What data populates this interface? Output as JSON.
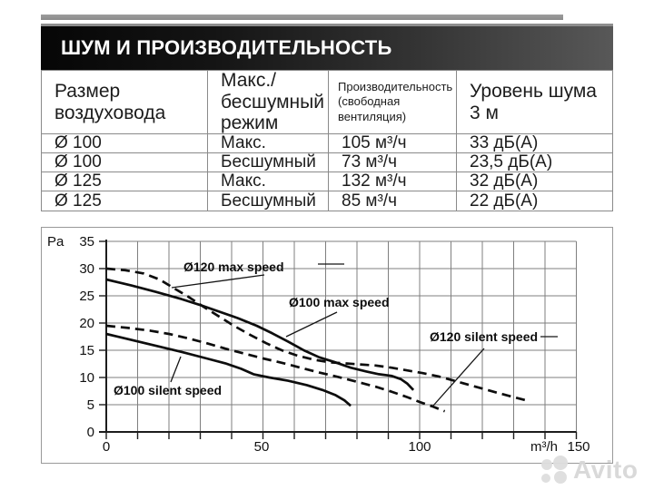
{
  "page": {
    "title_bar": {
      "text": "ШУМ И ПРОИЗВОДИТЕЛЬНОСТЬ"
    },
    "watermark": {
      "text": "Avito"
    }
  },
  "table": {
    "headers": [
      "Размер воздуховода",
      "Макс./ бесшумный режим",
      "Производительность (свободная вентиляция)",
      "Уровень шума 3 м"
    ],
    "rows": [
      [
        "Ø 100",
        "Макс.",
        "105 м³/ч",
        "33 дБ(А)"
      ],
      [
        "Ø 100",
        "Бесшумный",
        "73 м³/ч",
        "23,5 дБ(А)"
      ],
      [
        "Ø 125",
        "Макс.",
        "132 м³/ч",
        "32 дБ(А)"
      ],
      [
        "Ø 125",
        "Бесшумный",
        "85 м³/ч",
        "22 дБ(А)"
      ]
    ]
  },
  "chart_data": {
    "type": "line",
    "title": "",
    "xlabel": "m³/h",
    "ylabel": "Pa",
    "xlim": [
      0,
      150
    ],
    "ylim": [
      0,
      35
    ],
    "x_ticks": [
      0,
      50,
      100,
      150
    ],
    "y_ticks": [
      35,
      30,
      25,
      20,
      15,
      10,
      5,
      0
    ],
    "grid": {
      "on": true,
      "x_step": 10,
      "y_step": 5
    },
    "legend_position": "inline-callouts",
    "series": [
      {
        "name": "Ø120 max speed",
        "style": "dashed",
        "points": [
          [
            0,
            30
          ],
          [
            6,
            29.7
          ],
          [
            12,
            29.1
          ],
          [
            17,
            28
          ],
          [
            21,
            26.6
          ],
          [
            26,
            24.9
          ],
          [
            31,
            23
          ],
          [
            36,
            21.2
          ],
          [
            41,
            19.4
          ],
          [
            46,
            17.8
          ],
          [
            51,
            16.3
          ],
          [
            56,
            15
          ],
          [
            61,
            14
          ],
          [
            66,
            13.3
          ],
          [
            71,
            12.8
          ],
          [
            76,
            12.6
          ],
          [
            81,
            12.4
          ],
          [
            86,
            12.2
          ],
          [
            91,
            11.8
          ],
          [
            96,
            11.3
          ],
          [
            101,
            10.8
          ],
          [
            106,
            10.2
          ],
          [
            111,
            9.4
          ],
          [
            116,
            8.6
          ],
          [
            121,
            7.8
          ],
          [
            126,
            7
          ],
          [
            130,
            6.4
          ],
          [
            134,
            5.8
          ]
        ]
      },
      {
        "name": "Ø100 max speed",
        "style": "solid",
        "points": [
          [
            0,
            28
          ],
          [
            8,
            26.9
          ],
          [
            16,
            25.7
          ],
          [
            24,
            24.4
          ],
          [
            30,
            23.3
          ],
          [
            36,
            22.1
          ],
          [
            42,
            20.9
          ],
          [
            48,
            19.5
          ],
          [
            53,
            18.1
          ],
          [
            58,
            16.6
          ],
          [
            63,
            15
          ],
          [
            68,
            13.7
          ],
          [
            73,
            12.8
          ],
          [
            78,
            11.8
          ],
          [
            83,
            11.1
          ],
          [
            87,
            10.6
          ],
          [
            91,
            10.3
          ],
          [
            94,
            9.7
          ],
          [
            96,
            8.9
          ],
          [
            98,
            7.7
          ]
        ]
      },
      {
        "name": "Ø120 silent speed",
        "style": "dashed",
        "points": [
          [
            0,
            19.5
          ],
          [
            7,
            19.1
          ],
          [
            14,
            18.6
          ],
          [
            20,
            18
          ],
          [
            26,
            17.2
          ],
          [
            32,
            16.3
          ],
          [
            38,
            15.3
          ],
          [
            44,
            14.4
          ],
          [
            50,
            13.5
          ],
          [
            56,
            12.7
          ],
          [
            62,
            11.8
          ],
          [
            68,
            10.9
          ],
          [
            74,
            10.1
          ],
          [
            80,
            9.2
          ],
          [
            86,
            8.3
          ],
          [
            91,
            7.4
          ],
          [
            96,
            6.4
          ],
          [
            100,
            5.5
          ],
          [
            104,
            4.7
          ],
          [
            108,
            3.8
          ]
        ]
      },
      {
        "name": "Ø100 silent speed",
        "style": "solid",
        "points": [
          [
            0,
            18
          ],
          [
            8,
            16.9
          ],
          [
            16,
            15.8
          ],
          [
            24,
            14.7
          ],
          [
            32,
            13.5
          ],
          [
            38,
            12.6
          ],
          [
            43,
            11.6
          ],
          [
            47,
            10.6
          ],
          [
            52,
            10
          ],
          [
            58,
            9.4
          ],
          [
            64,
            8.6
          ],
          [
            69,
            7.7
          ],
          [
            73,
            6.8
          ],
          [
            76,
            5.8
          ],
          [
            78,
            4.8
          ]
        ]
      }
    ]
  }
}
